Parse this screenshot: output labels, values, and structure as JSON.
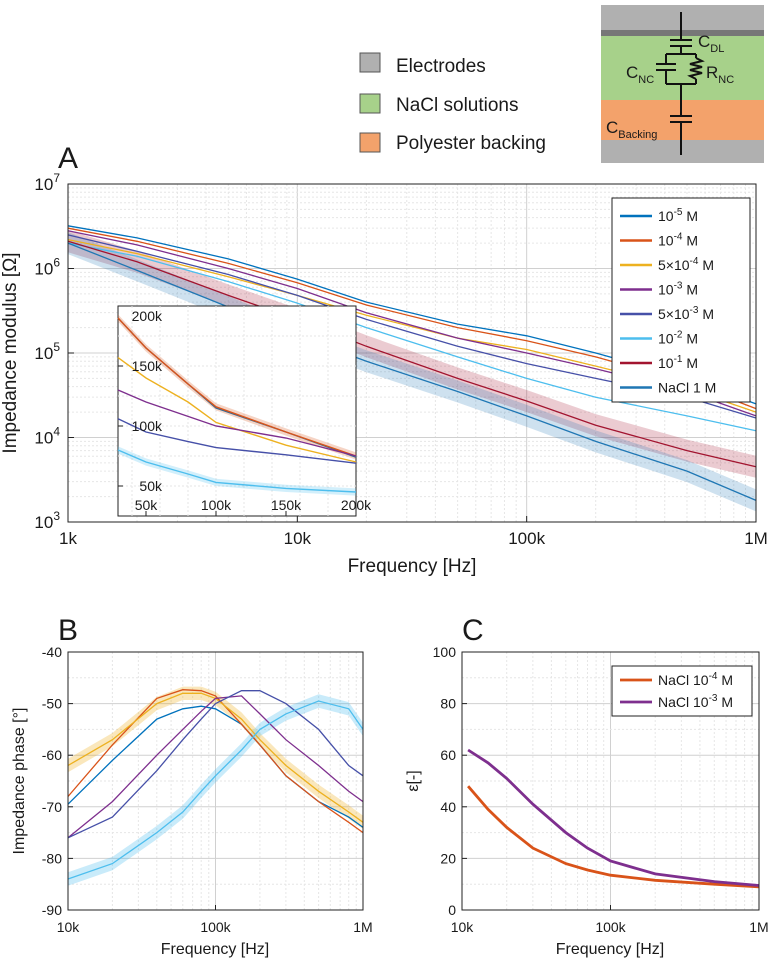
{
  "series_colors": [
    "#0072BD",
    "#D95319",
    "#EDB120",
    "#7E2F8E",
    "#4650A8",
    "#4DBEEE",
    "#A2142F",
    "#1F77B4"
  ],
  "legend_top": {
    "items": [
      {
        "label": "Electrodes",
        "color": "#b0b0b0"
      },
      {
        "label": "NaCl solutions",
        "color": "#a7d18a"
      },
      {
        "label": "Polyester backing",
        "color": "#f3a26b"
      }
    ]
  },
  "circuit": {
    "labels": {
      "cdl_main": "C",
      "cdl_sub": "DL",
      "cnc_main": "C",
      "cnc_sub": "NC",
      "rnc_main": "R",
      "rnc_sub": "NC",
      "cback_main": "C",
      "cback_sub": "Backing"
    },
    "colors": {
      "electrode": "#b0b0b0",
      "electrode_dark": "#777777",
      "nacl": "#a7d18a",
      "backing": "#f3a26b"
    }
  },
  "chart_data": [
    {
      "panel": "A",
      "type": "line",
      "xlabel": "Frequency [Hz]",
      "ylabel": "Impedance modulus [Ω]",
      "xscale": "log",
      "yscale": "log",
      "xlim": [
        1000,
        1000000
      ],
      "ylim": [
        1000,
        10000000
      ],
      "xticks": [
        {
          "v": 1000,
          "label": "1k"
        },
        {
          "v": 10000,
          "label": "10k"
        },
        {
          "v": 100000,
          "label": "100k"
        },
        {
          "v": 1000000,
          "label": "1M"
        }
      ],
      "yticks": [
        {
          "v": 1000,
          "base": "10",
          "exp": "3"
        },
        {
          "v": 10000,
          "base": "10",
          "exp": "4"
        },
        {
          "v": 100000,
          "base": "10",
          "exp": "5"
        },
        {
          "v": 1000000,
          "base": "10",
          "exp": "6"
        },
        {
          "v": 10000000,
          "base": "10",
          "exp": "7"
        }
      ],
      "legend": [
        {
          "pre": "10",
          "sup": "-5",
          "post": " M"
        },
        {
          "pre": "10",
          "sup": "-4",
          "post": " M"
        },
        {
          "pre": "5×10",
          "sup": "-4",
          "post": " M"
        },
        {
          "pre": "10",
          "sup": "-3",
          "post": " M"
        },
        {
          "pre": "5×10",
          "sup": "-3",
          "post": " M"
        },
        {
          "pre": "10",
          "sup": "-2",
          "post": " M"
        },
        {
          "pre": "10",
          "sup": "-1",
          "post": " M"
        },
        {
          "pre": "NaCl 1 M",
          "sup": "",
          "post": ""
        }
      ],
      "series": [
        {
          "name": "1e-5 M",
          "x": [
            1000,
            2000,
            5000,
            10000,
            20000,
            50000,
            100000,
            200000,
            500000,
            1000000
          ],
          "y": [
            3200000,
            2300000,
            1300000,
            750000,
            400000,
            220000,
            160000,
            100000,
            50000,
            25000
          ]
        },
        {
          "name": "1e-4 M",
          "x": [
            1000,
            2000,
            5000,
            10000,
            20000,
            50000,
            100000,
            200000,
            500000,
            1000000
          ],
          "y": [
            3000000,
            2100000,
            1150000,
            680000,
            370000,
            200000,
            140000,
            90000,
            45000,
            22000
          ]
        },
        {
          "name": "5e-4 M",
          "x": [
            1000,
            2000,
            5000,
            10000,
            20000,
            50000,
            100000,
            200000,
            500000,
            1000000
          ],
          "y": [
            2200000,
            1500000,
            800000,
            480000,
            280000,
            150000,
            110000,
            70000,
            38000,
            20000
          ]
        },
        {
          "name": "1e-3 M",
          "x": [
            1000,
            2000,
            5000,
            10000,
            20000,
            50000,
            100000,
            200000,
            500000,
            1000000
          ],
          "y": [
            2800000,
            1900000,
            1000000,
            580000,
            300000,
            150000,
            100000,
            65000,
            35000,
            18000
          ]
        },
        {
          "name": "5e-3 M",
          "x": [
            1000,
            2000,
            5000,
            10000,
            20000,
            50000,
            100000,
            200000,
            500000,
            1000000
          ],
          "y": [
            2500000,
            1600000,
            850000,
            480000,
            250000,
            120000,
            75000,
            50000,
            30000,
            17000
          ]
        },
        {
          "name": "1e-2 M",
          "x": [
            1000,
            2000,
            5000,
            10000,
            20000,
            50000,
            100000,
            200000,
            500000,
            1000000
          ],
          "y": [
            2000000,
            1400000,
            700000,
            390000,
            200000,
            90000,
            50000,
            30000,
            18000,
            12000
          ]
        },
        {
          "name": "1e-1 M",
          "band": true,
          "x": [
            1000,
            2000,
            5000,
            10000,
            20000,
            50000,
            100000,
            200000,
            500000,
            1000000
          ],
          "y": [
            2100000,
            1200000,
            480000,
            250000,
            120000,
            50000,
            27000,
            14000,
            7000,
            4500
          ]
        },
        {
          "name": "NaCl 1 M",
          "band": true,
          "x": [
            1000,
            2000,
            5000,
            10000,
            20000,
            50000,
            100000,
            200000,
            500000,
            1000000
          ],
          "y": [
            2000000,
            950000,
            350000,
            160000,
            80000,
            35000,
            18000,
            9000,
            4000,
            1800
          ]
        }
      ],
      "inset": {
        "xlim": [
          30000,
          200000
        ],
        "ylim": [
          25000,
          200000
        ],
        "xticks": [
          {
            "v": 50000,
            "label": "50k"
          },
          {
            "v": 100000,
            "label": "100k"
          },
          {
            "v": 150000,
            "label": "150k"
          },
          {
            "v": 200000,
            "label": "200k"
          }
        ],
        "yticks": [
          {
            "v": 50000,
            "label": "50k"
          },
          {
            "v": 100000,
            "label": "100k"
          },
          {
            "v": 150000,
            "label": "150k"
          },
          {
            "v": 200000,
            "label": "200k"
          }
        ],
        "series": [
          {
            "idx": 0,
            "x": [
              30000,
              50000,
              80000,
              100000,
              150000,
              200000
            ],
            "y": [
              190000,
              165000,
              135000,
              115000,
              95000,
              74000
            ]
          },
          {
            "idx": 1,
            "x": [
              30000,
              50000,
              80000,
              100000,
              150000,
              200000
            ],
            "y": [
              190000,
              165000,
              135000,
              116000,
              95000,
              75000
            ]
          },
          {
            "idx": 2,
            "x": [
              30000,
              50000,
              80000,
              100000,
              150000,
              200000
            ],
            "y": [
              157000,
              140000,
              120000,
              103000,
              84000,
              70000
            ]
          },
          {
            "idx": 3,
            "x": [
              30000,
              50000,
              80000,
              100000,
              150000,
              200000
            ],
            "y": [
              130000,
              120000,
              108000,
              100000,
              90000,
              75000
            ]
          },
          {
            "idx": 4,
            "x": [
              30000,
              50000,
              80000,
              100000,
              150000,
              200000
            ],
            "y": [
              106000,
              95000,
              87000,
              82000,
              76000,
              69000
            ]
          },
          {
            "idx": 5,
            "x": [
              30000,
              50000,
              80000,
              100000,
              150000,
              200000
            ],
            "y": [
              80000,
              70000,
              60000,
              53000,
              48000,
              45000
            ]
          }
        ]
      }
    },
    {
      "panel": "B",
      "type": "line",
      "xlabel": "Frequency [Hz]",
      "ylabel": "Impedance phase [°]",
      "xscale": "log",
      "yscale": "linear",
      "xlim": [
        10000,
        1000000
      ],
      "ylim": [
        -90,
        -40
      ],
      "xticks": [
        {
          "v": 10000,
          "label": "10k"
        },
        {
          "v": 100000,
          "label": "100k"
        },
        {
          "v": 1000000,
          "label": "1M"
        }
      ],
      "yticks": [
        {
          "v": -90,
          "label": "-90"
        },
        {
          "v": -80,
          "label": "-80"
        },
        {
          "v": -70,
          "label": "-70"
        },
        {
          "v": -60,
          "label": "-60"
        },
        {
          "v": -50,
          "label": "-50"
        },
        {
          "v": -40,
          "label": "-40"
        }
      ],
      "series": [
        {
          "idx": 0,
          "x": [
            10000,
            20000,
            40000,
            60000,
            80000,
            100000,
            150000,
            200000,
            300000,
            500000,
            800000,
            1000000
          ],
          "y": [
            -69.5,
            -61,
            -53,
            -51,
            -50.5,
            -51,
            -54,
            -58,
            -64,
            -69,
            -72,
            -74
          ]
        },
        {
          "idx": 1,
          "x": [
            10000,
            20000,
            40000,
            60000,
            80000,
            100000,
            150000,
            200000,
            300000,
            500000,
            800000,
            1000000
          ],
          "y": [
            -68,
            -58,
            -49,
            -47.3,
            -47.5,
            -48.5,
            -54,
            -58,
            -64,
            -69,
            -73,
            -75
          ]
        },
        {
          "idx": 2,
          "band": true,
          "x": [
            10000,
            20000,
            40000,
            60000,
            80000,
            100000,
            150000,
            200000,
            300000,
            500000,
            800000,
            1000000
          ],
          "y": [
            -62,
            -57,
            -50,
            -48,
            -48,
            -49,
            -53,
            -57,
            -62,
            -67,
            -71,
            -73
          ]
        },
        {
          "idx": 3,
          "x": [
            10000,
            20000,
            40000,
            60000,
            80000,
            100000,
            150000,
            200000,
            300000,
            500000,
            800000,
            1000000
          ],
          "y": [
            -76,
            -69,
            -60,
            -55,
            -51.5,
            -49,
            -48.5,
            -52,
            -57,
            -62,
            -67,
            -69
          ]
        },
        {
          "idx": 4,
          "x": [
            10000,
            20000,
            40000,
            60000,
            80000,
            100000,
            150000,
            200000,
            300000,
            500000,
            800000,
            1000000
          ],
          "y": [
            -76,
            -72,
            -63,
            -57,
            -53,
            -50,
            -47.5,
            -47.5,
            -50,
            -55,
            -62,
            -64
          ]
        },
        {
          "idx": 5,
          "band": true,
          "x": [
            10000,
            20000,
            40000,
            60000,
            80000,
            100000,
            150000,
            200000,
            300000,
            500000,
            800000,
            1000000
          ],
          "y": [
            -84,
            -81,
            -75,
            -71,
            -67,
            -64,
            -59,
            -55,
            -52,
            -49.5,
            -51,
            -55
          ]
        }
      ]
    },
    {
      "panel": "C",
      "type": "line",
      "xlabel": "Frequency [Hz]",
      "ylabel": "ε[-]",
      "xscale": "log",
      "yscale": "linear",
      "xlim": [
        10000,
        1000000
      ],
      "ylim": [
        0,
        100
      ],
      "xticks": [
        {
          "v": 10000,
          "label": "10k"
        },
        {
          "v": 100000,
          "label": "100k"
        },
        {
          "v": 1000000,
          "label": "1M"
        }
      ],
      "yticks": [
        {
          "v": 0,
          "label": "0"
        },
        {
          "v": 20,
          "label": "20"
        },
        {
          "v": 40,
          "label": "40"
        },
        {
          "v": 60,
          "label": "60"
        },
        {
          "v": 80,
          "label": "80"
        },
        {
          "v": 100,
          "label": "100"
        }
      ],
      "legend": [
        {
          "pre": "NaCl 10",
          "sup": "-4",
          "post": " M",
          "color": "#D95319"
        },
        {
          "pre": "NaCl 10",
          "sup": "-3",
          "post": " M",
          "color": "#7E2F8E"
        }
      ],
      "series": [
        {
          "name": "NaCl 1e-4 M",
          "color": "#D95319",
          "x": [
            11000,
            15000,
            20000,
            30000,
            50000,
            70000,
            100000,
            200000,
            500000,
            1000000
          ],
          "y": [
            48,
            39,
            32,
            24,
            18,
            15.5,
            13.5,
            11.5,
            10,
            9
          ]
        },
        {
          "name": "NaCl 1e-3 M",
          "color": "#7E2F8E",
          "x": [
            11000,
            15000,
            20000,
            30000,
            50000,
            70000,
            100000,
            200000,
            500000,
            1000000
          ],
          "y": [
            62,
            57,
            51,
            41,
            30,
            24,
            19,
            14,
            11,
            9.5
          ]
        }
      ]
    }
  ]
}
